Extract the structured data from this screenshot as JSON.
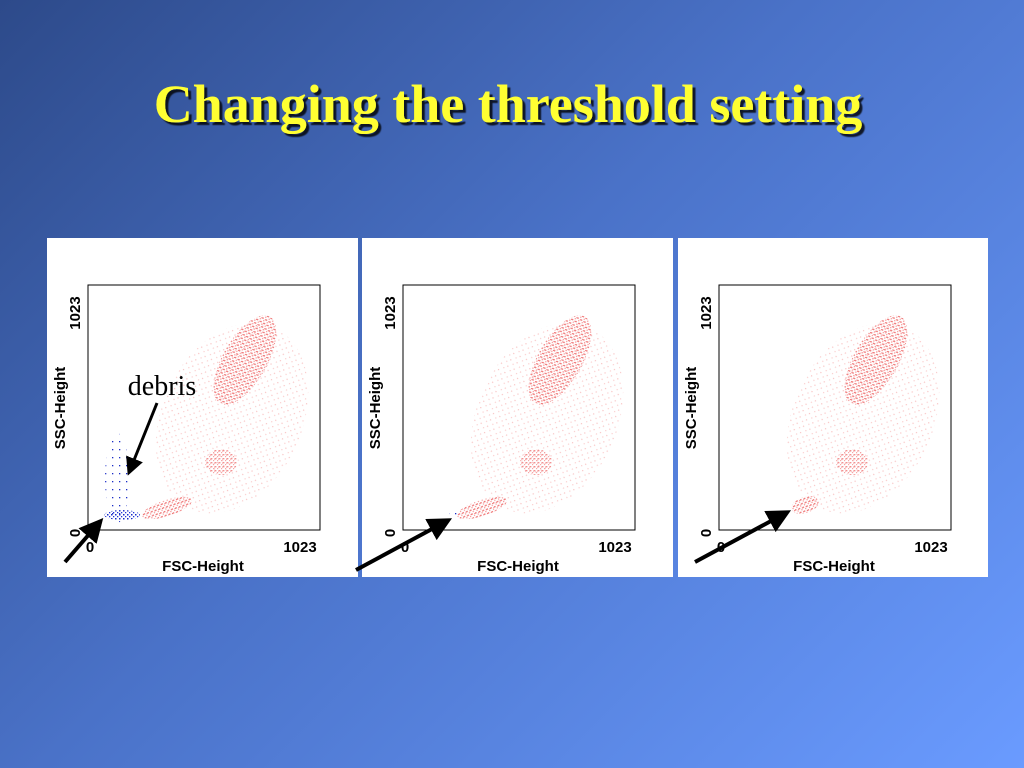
{
  "title": "Changing the threshold setting",
  "annotation": "debris",
  "panels": [
    {
      "y_axis_label": "SSC-Height",
      "x_axis_label": "FSC-Height",
      "y_ticks": [
        "0",
        "1023"
      ],
      "x_ticks": [
        "0",
        "1023"
      ]
    },
    {
      "y_axis_label": "SSC-Height",
      "x_axis_label": "FSC-Height",
      "y_ticks": [
        "0",
        "1023"
      ],
      "x_ticks": [
        "0",
        "1023"
      ]
    },
    {
      "y_axis_label": "SSC-Height",
      "x_axis_label": "FSC-Height",
      "y_ticks": [
        "0",
        "1023"
      ],
      "x_ticks": [
        "0",
        "1023"
      ]
    }
  ]
}
